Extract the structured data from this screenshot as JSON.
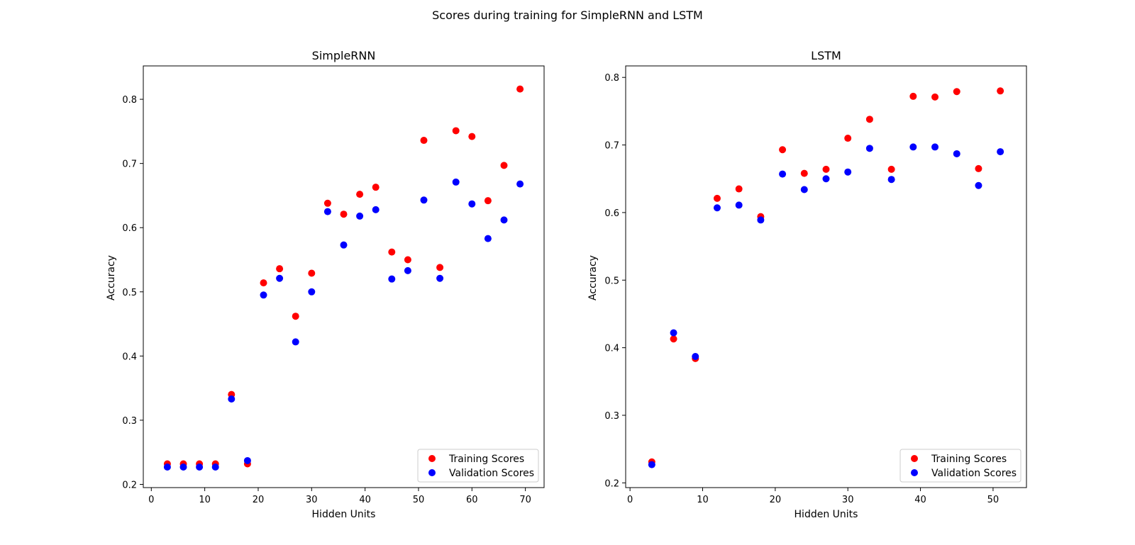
{
  "figure": {
    "suptitle": "Scores during training for SimpleRNN and LSTM"
  },
  "colors": {
    "training": "#ff0000",
    "validation": "#0000ff"
  },
  "chart_data": [
    {
      "type": "scatter",
      "title": "SimpleRNN",
      "xlabel": "Hidden Units",
      "ylabel": "Accuracy",
      "xlim": [
        -1.5,
        73.5
      ],
      "ylim": [
        0.195,
        0.852
      ],
      "xticks": [
        0,
        10,
        20,
        30,
        40,
        50,
        60,
        70
      ],
      "yticks": [
        0.2,
        0.3,
        0.4,
        0.5,
        0.6,
        0.7,
        0.8
      ],
      "grid": false,
      "legend_position": "lower-right",
      "x": [
        3,
        6,
        9,
        12,
        15,
        18,
        21,
        24,
        27,
        30,
        33,
        36,
        39,
        42,
        45,
        48,
        51,
        54,
        57,
        60,
        63,
        66,
        69
      ],
      "series": [
        {
          "name": "Training Scores",
          "color": "#ff0000",
          "values": [
            0.232,
            0.232,
            0.232,
            0.232,
            0.34,
            0.232,
            0.514,
            0.536,
            0.462,
            0.529,
            0.638,
            0.621,
            0.652,
            0.663,
            0.562,
            0.55,
            0.736,
            0.538,
            0.751,
            0.742,
            0.642,
            0.697,
            0.816
          ]
        },
        {
          "name": "Validation Scores",
          "color": "#0000ff",
          "values": [
            0.227,
            0.227,
            0.227,
            0.227,
            0.333,
            0.237,
            0.495,
            0.521,
            0.422,
            0.5,
            0.625,
            0.573,
            0.618,
            0.628,
            0.52,
            0.533,
            0.643,
            0.521,
            0.671,
            0.637,
            0.583,
            0.612,
            0.668
          ]
        }
      ]
    },
    {
      "type": "scatter",
      "title": "LSTM",
      "xlabel": "Hidden Units",
      "ylabel": "Accuracy",
      "xlim": [
        -0.6,
        54.6
      ],
      "ylim": [
        0.193,
        0.817
      ],
      "xticks": [
        0,
        10,
        20,
        30,
        40,
        50
      ],
      "yticks": [
        0.2,
        0.3,
        0.4,
        0.5,
        0.6,
        0.7,
        0.8
      ],
      "grid": false,
      "legend_position": "lower-right",
      "x": [
        3,
        6,
        9,
        12,
        15,
        18,
        21,
        24,
        27,
        30,
        33,
        36,
        39,
        42,
        45,
        48,
        51
      ],
      "series": [
        {
          "name": "Training Scores",
          "color": "#ff0000",
          "values": [
            0.231,
            0.413,
            0.384,
            0.621,
            0.635,
            0.594,
            0.693,
            0.658,
            0.664,
            0.71,
            0.738,
            0.664,
            0.772,
            0.771,
            0.779,
            0.665,
            0.78
          ]
        },
        {
          "name": "Validation Scores",
          "color": "#0000ff",
          "values": [
            0.227,
            0.422,
            0.387,
            0.607,
            0.611,
            0.589,
            0.657,
            0.634,
            0.65,
            0.66,
            0.695,
            0.649,
            0.697,
            0.697,
            0.687,
            0.64,
            0.69
          ]
        }
      ]
    }
  ]
}
